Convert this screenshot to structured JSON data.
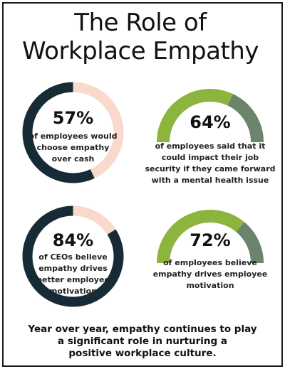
{
  "title_line1": "The Role of",
  "title_line2": "Workplace Empathy",
  "colors": {
    "ring_fill": "#162b35",
    "ring_track": "#f8d9cb",
    "gauge_fill": "#8db43c",
    "gauge_track": "#6b846b"
  },
  "chart_data": [
    {
      "type": "pie",
      "style": "ring",
      "value_pct": 57,
      "label": "57%",
      "description": [
        "of employees would",
        "choose empathy",
        "over cash"
      ]
    },
    {
      "type": "pie",
      "style": "half-gauge",
      "value_pct": 64,
      "label": "64%",
      "description": [
        "of employees said that it",
        "could impact their job",
        "security if they came forward",
        "with a mental health issue"
      ]
    },
    {
      "type": "pie",
      "style": "ring",
      "value_pct": 84,
      "label": "84%",
      "description": [
        "of CEOs believe",
        "empathy drives",
        "better employee",
        "motivation"
      ]
    },
    {
      "type": "pie",
      "style": "half-gauge",
      "value_pct": 72,
      "label": "72%",
      "description": [
        "of employees believe",
        "empathy drives employee",
        "motivation"
      ]
    }
  ],
  "footer_lines": [
    "Year over year, empathy continues to play",
    "a significant role in nurturing a",
    "positive workplace culture."
  ]
}
